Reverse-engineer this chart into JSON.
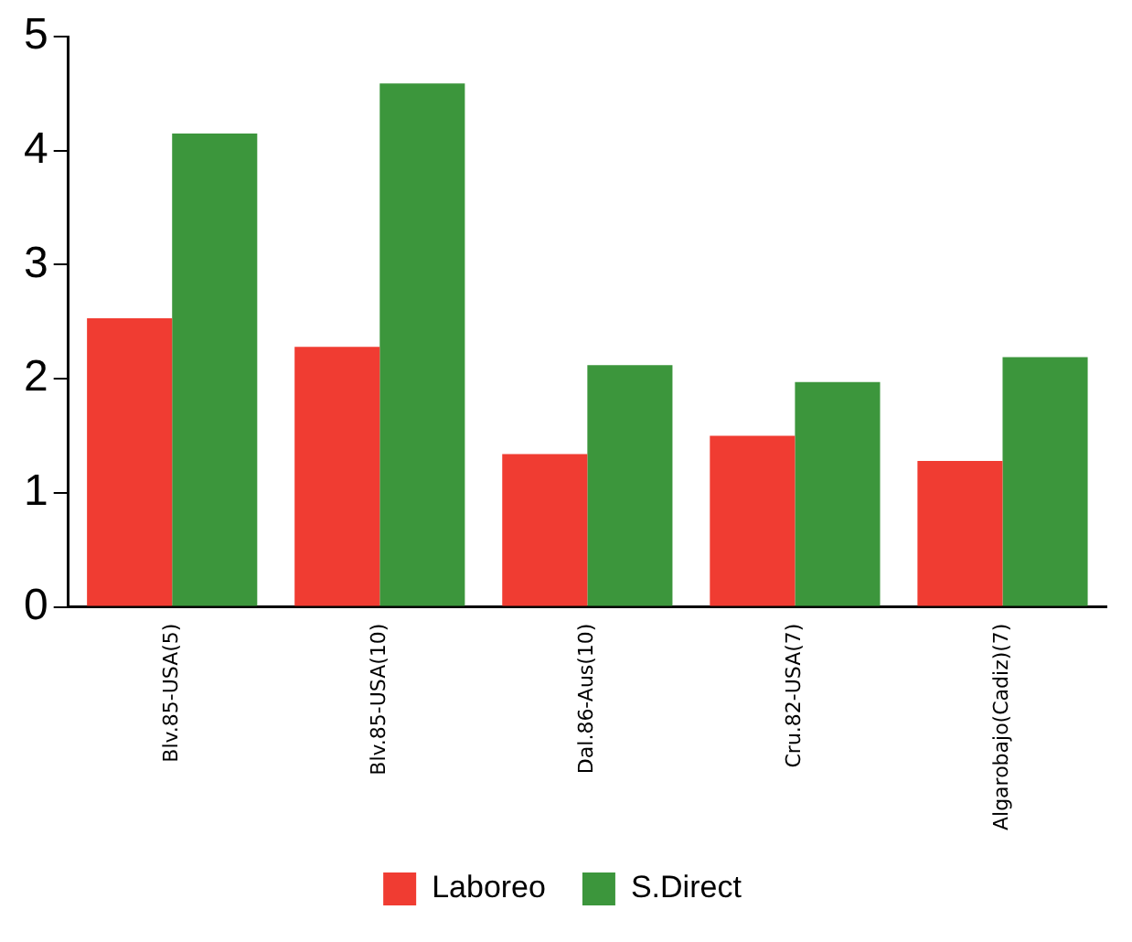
{
  "chart_data": {
    "type": "bar",
    "categories": [
      "Blv.85-USA(5)",
      "Blv.85-USA(10)",
      "Dal.86-Aus(10)",
      "Cru.82-USA(7)",
      "Algarobajo(Cadiz)(7)"
    ],
    "series": [
      {
        "name": "Laboreo",
        "color": "#f03c32",
        "values": [
          2.53,
          2.28,
          1.34,
          1.5,
          1.28
        ]
      },
      {
        "name": "S.Direct",
        "color": "#3c963c",
        "values": [
          4.15,
          4.59,
          2.12,
          1.97,
          2.19
        ]
      }
    ],
    "ylim": [
      0,
      5
    ],
    "yticks": [
      0,
      1,
      2,
      3,
      4,
      5
    ],
    "grid": false,
    "legend": "bottom"
  }
}
